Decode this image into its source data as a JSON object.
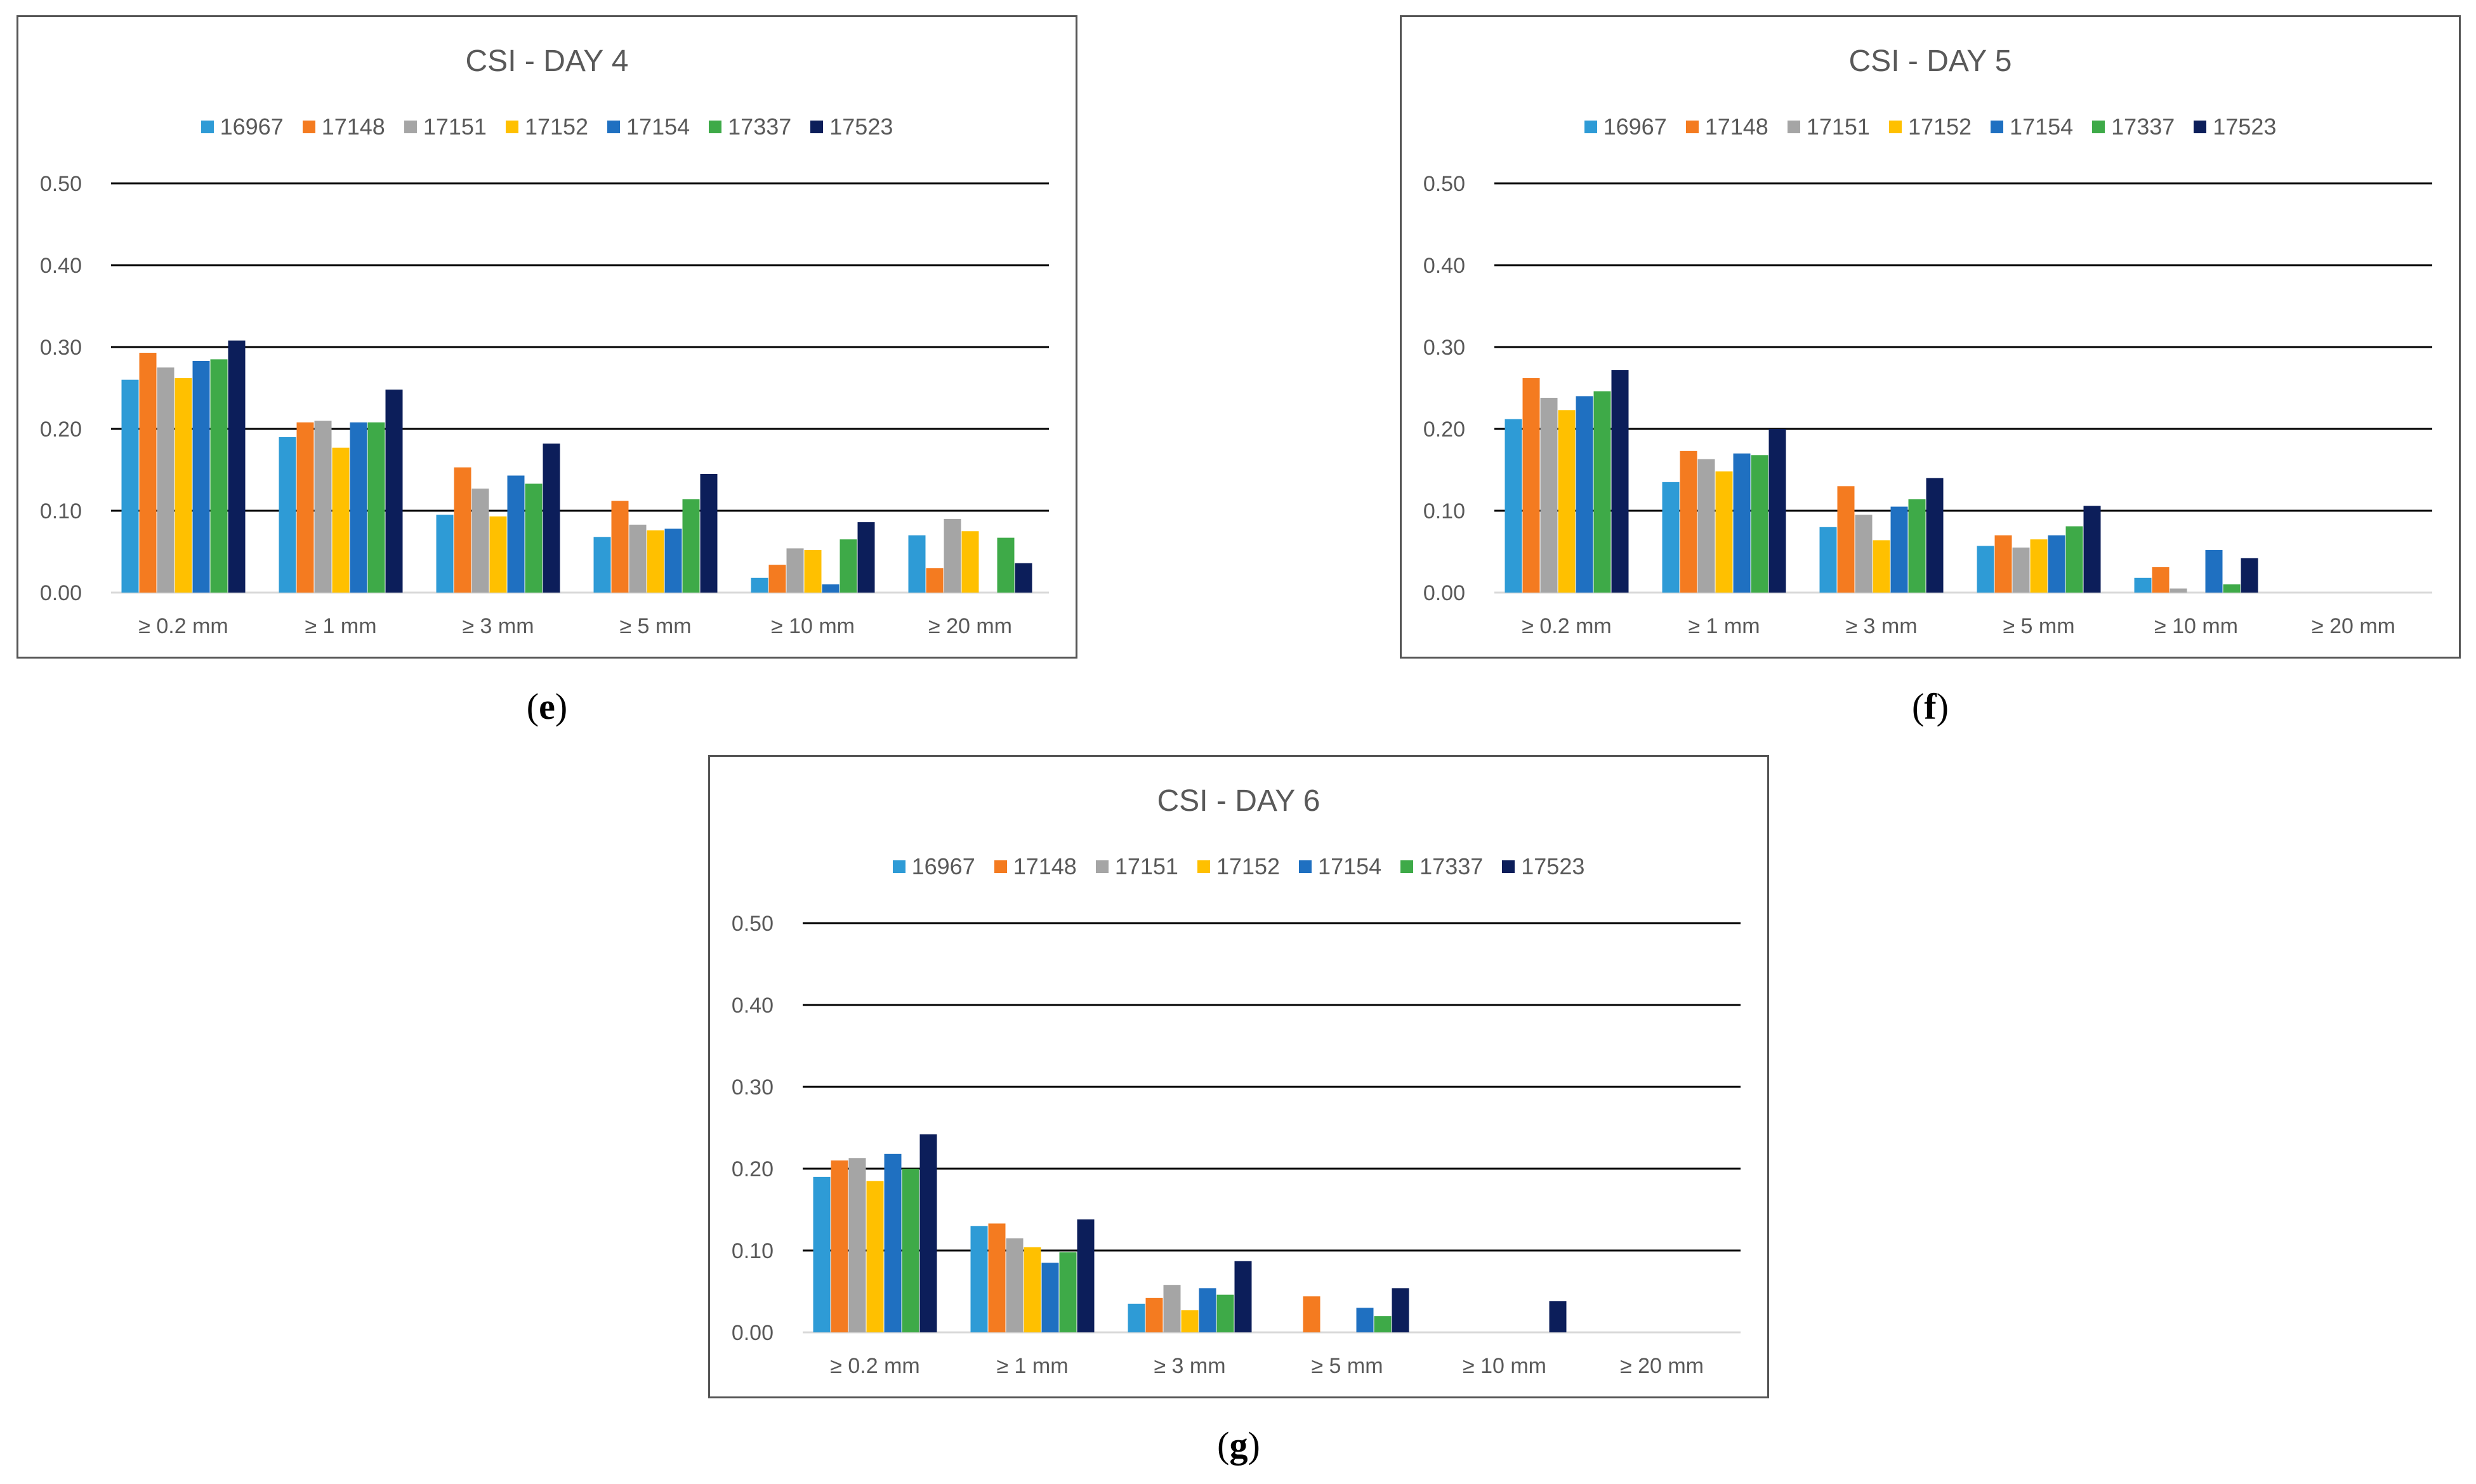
{
  "series_colors": {
    "16967": "#2E9BD6",
    "17148": "#F47B20",
    "17151": "#A5A5A5",
    "17152": "#FFC000",
    "17154": "#1F70C1",
    "17337": "#3EAA48",
    "17523": "#0C1E5A"
  },
  "chart_data": [
    {
      "type": "bar",
      "id": "e",
      "caption_letter": "e",
      "title": "CSI - DAY 4",
      "categories": [
        "≥ 0.2 mm",
        "≥ 1 mm",
        "≥ 3 mm",
        "≥ 5 mm",
        "≥ 10 mm",
        "≥ 20 mm"
      ],
      "ylim": [
        0,
        0.5
      ],
      "yticks": [
        "0.00",
        "0.10",
        "0.20",
        "0.30",
        "0.40",
        "0.50"
      ],
      "legend_position": "top",
      "series": [
        {
          "name": "16967",
          "values": [
            0.26,
            0.19,
            0.095,
            0.068,
            0.018,
            0.07
          ]
        },
        {
          "name": "17148",
          "values": [
            0.293,
            0.208,
            0.153,
            0.112,
            0.034,
            0.03
          ]
        },
        {
          "name": "17151",
          "values": [
            0.275,
            0.21,
            0.127,
            0.083,
            0.054,
            0.09
          ]
        },
        {
          "name": "17152",
          "values": [
            0.262,
            0.177,
            0.093,
            0.076,
            0.052,
            0.075
          ]
        },
        {
          "name": "17154",
          "values": [
            0.283,
            0.208,
            0.143,
            0.078,
            0.01,
            0.0
          ]
        },
        {
          "name": "17337",
          "values": [
            0.285,
            0.208,
            0.133,
            0.114,
            0.065,
            0.067
          ]
        },
        {
          "name": "17523",
          "values": [
            0.308,
            0.248,
            0.182,
            0.145,
            0.086,
            0.036
          ]
        }
      ]
    },
    {
      "type": "bar",
      "id": "f",
      "caption_letter": "f",
      "title": "CSI - DAY 5",
      "categories": [
        "≥ 0.2 mm",
        "≥ 1 mm",
        "≥ 3 mm",
        "≥ 5 mm",
        "≥ 10 mm",
        "≥ 20 mm"
      ],
      "ylim": [
        0,
        0.5
      ],
      "yticks": [
        "0.00",
        "0.10",
        "0.20",
        "0.30",
        "0.40",
        "0.50"
      ],
      "legend_position": "top",
      "series": [
        {
          "name": "16967",
          "values": [
            0.212,
            0.135,
            0.08,
            0.057,
            0.018,
            0
          ]
        },
        {
          "name": "17148",
          "values": [
            0.262,
            0.173,
            0.13,
            0.07,
            0.031,
            0
          ]
        },
        {
          "name": "17151",
          "values": [
            0.238,
            0.163,
            0.095,
            0.055,
            0.005,
            0
          ]
        },
        {
          "name": "17152",
          "values": [
            0.223,
            0.148,
            0.064,
            0.065,
            0,
            0
          ]
        },
        {
          "name": "17154",
          "values": [
            0.24,
            0.17,
            0.105,
            0.07,
            0.052,
            0
          ]
        },
        {
          "name": "17337",
          "values": [
            0.246,
            0.168,
            0.114,
            0.081,
            0.01,
            0
          ]
        },
        {
          "name": "17523",
          "values": [
            0.272,
            0.2,
            0.14,
            0.106,
            0.042,
            0
          ]
        }
      ]
    },
    {
      "type": "bar",
      "id": "g",
      "caption_letter": "g",
      "title": "CSI - DAY 6",
      "categories": [
        "≥ 0.2 mm",
        "≥ 1 mm",
        "≥ 3 mm",
        "≥ 5 mm",
        "≥ 10 mm",
        "≥ 20 mm"
      ],
      "ylim": [
        0,
        0.5
      ],
      "yticks": [
        "0.00",
        "0.10",
        "0.20",
        "0.30",
        "0.40",
        "0.50"
      ],
      "legend_position": "top",
      "series": [
        {
          "name": "16967",
          "values": [
            0.19,
            0.13,
            0.035,
            0,
            0,
            0
          ]
        },
        {
          "name": "17148",
          "values": [
            0.21,
            0.133,
            0.042,
            0.044,
            0,
            0
          ]
        },
        {
          "name": "17151",
          "values": [
            0.213,
            0.115,
            0.058,
            0,
            0,
            0
          ]
        },
        {
          "name": "17152",
          "values": [
            0.185,
            0.104,
            0.027,
            0,
            0,
            0
          ]
        },
        {
          "name": "17154",
          "values": [
            0.218,
            0.085,
            0.054,
            0.03,
            0,
            0
          ]
        },
        {
          "name": "17337",
          "values": [
            0.2,
            0.098,
            0.046,
            0.02,
            0,
            0
          ]
        },
        {
          "name": "17523",
          "values": [
            0.242,
            0.138,
            0.087,
            0.054,
            0.038,
            0
          ]
        }
      ]
    }
  ]
}
